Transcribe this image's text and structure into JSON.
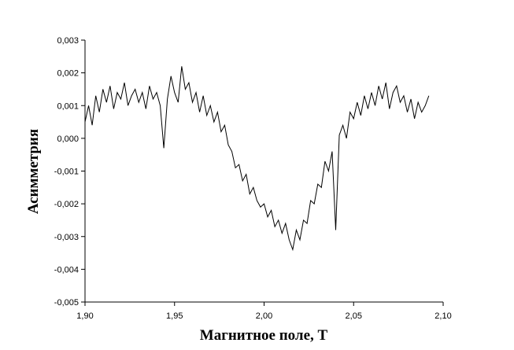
{
  "chart_data": {
    "type": "line",
    "x_label": "Магнитное поле, Т",
    "y_label": "Асимметрия",
    "color": "#000000",
    "x": [
      1.9,
      1.902,
      1.904,
      1.906,
      1.908,
      1.91,
      1.912,
      1.914,
      1.916,
      1.918,
      1.92,
      1.922,
      1.924,
      1.926,
      1.928,
      1.93,
      1.932,
      1.934,
      1.936,
      1.938,
      1.94,
      1.942,
      1.944,
      1.946,
      1.948,
      1.95,
      1.952,
      1.954,
      1.956,
      1.958,
      1.96,
      1.962,
      1.964,
      1.966,
      1.968,
      1.97,
      1.972,
      1.974,
      1.976,
      1.978,
      1.98,
      1.982,
      1.984,
      1.986,
      1.988,
      1.99,
      1.992,
      1.994,
      1.996,
      1.998,
      2.0,
      2.002,
      2.004,
      2.006,
      2.008,
      2.01,
      2.012,
      2.014,
      2.016,
      2.018,
      2.02,
      2.022,
      2.024,
      2.026,
      2.028,
      2.03,
      2.032,
      2.034,
      2.036,
      2.038,
      2.04,
      2.042,
      2.044,
      2.046,
      2.048,
      2.05,
      2.052,
      2.054,
      2.056,
      2.058,
      2.06,
      2.062,
      2.064,
      2.066,
      2.068,
      2.07,
      2.072,
      2.074,
      2.076,
      2.078,
      2.08,
      2.082,
      2.084,
      2.086,
      2.088,
      2.09,
      2.092
    ],
    "values": [
      0.0005,
      0.001,
      0.0004,
      0.0013,
      0.0008,
      0.0015,
      0.0011,
      0.0016,
      0.0009,
      0.0014,
      0.0012,
      0.0017,
      0.001,
      0.0013,
      0.0015,
      0.0011,
      0.0014,
      0.0009,
      0.0016,
      0.0012,
      0.0014,
      0.001,
      -0.0003,
      0.0012,
      0.0019,
      0.0014,
      0.0011,
      0.0022,
      0.0015,
      0.0017,
      0.0011,
      0.0014,
      0.0008,
      0.0013,
      0.0007,
      0.001,
      0.0005,
      0.0008,
      0.0002,
      0.0004,
      -0.0002,
      -0.0004,
      -0.0009,
      -0.0008,
      -0.0013,
      -0.0011,
      -0.0017,
      -0.0015,
      -0.0019,
      -0.0021,
      -0.002,
      -0.0024,
      -0.0022,
      -0.0027,
      -0.0025,
      -0.0029,
      -0.0026,
      -0.0031,
      -0.0034,
      -0.0028,
      -0.0031,
      -0.0025,
      -0.0026,
      -0.0019,
      -0.002,
      -0.0014,
      -0.0015,
      -0.0007,
      -0.001,
      -0.0004,
      -0.0028,
      0.0001,
      0.0004,
      0.0,
      0.0008,
      0.0006,
      0.0011,
      0.0007,
      0.0013,
      0.0009,
      0.0014,
      0.001,
      0.0016,
      0.0012,
      0.0017,
      0.0009,
      0.0014,
      0.0016,
      0.0011,
      0.0013,
      0.0008,
      0.0012,
      0.0006,
      0.0011,
      0.0008,
      0.001,
      0.0013
    ],
    "xlim": [
      1.9,
      2.1
    ],
    "xticks": [
      {
        "value": 1.9,
        "label": "1,90"
      },
      {
        "value": 1.95,
        "label": "1,95"
      },
      {
        "value": 2.0,
        "label": "2,00"
      },
      {
        "value": 2.05,
        "label": "2,05"
      },
      {
        "value": 2.1,
        "label": "2,10"
      }
    ],
    "ylim": [
      -0.005,
      0.003
    ],
    "yticks": [
      {
        "value": -0.005,
        "label": "-0,005"
      },
      {
        "value": -0.004,
        "label": "-0,004"
      },
      {
        "value": -0.003,
        "label": "-0,003"
      },
      {
        "value": -0.002,
        "label": "-0,002"
      },
      {
        "value": -0.001,
        "label": "-0,001"
      },
      {
        "value": 0.0,
        "label": "0,000"
      },
      {
        "value": 0.001,
        "label": "0,001"
      },
      {
        "value": 0.002,
        "label": "0,002"
      },
      {
        "value": 0.003,
        "label": "0,003"
      }
    ]
  }
}
